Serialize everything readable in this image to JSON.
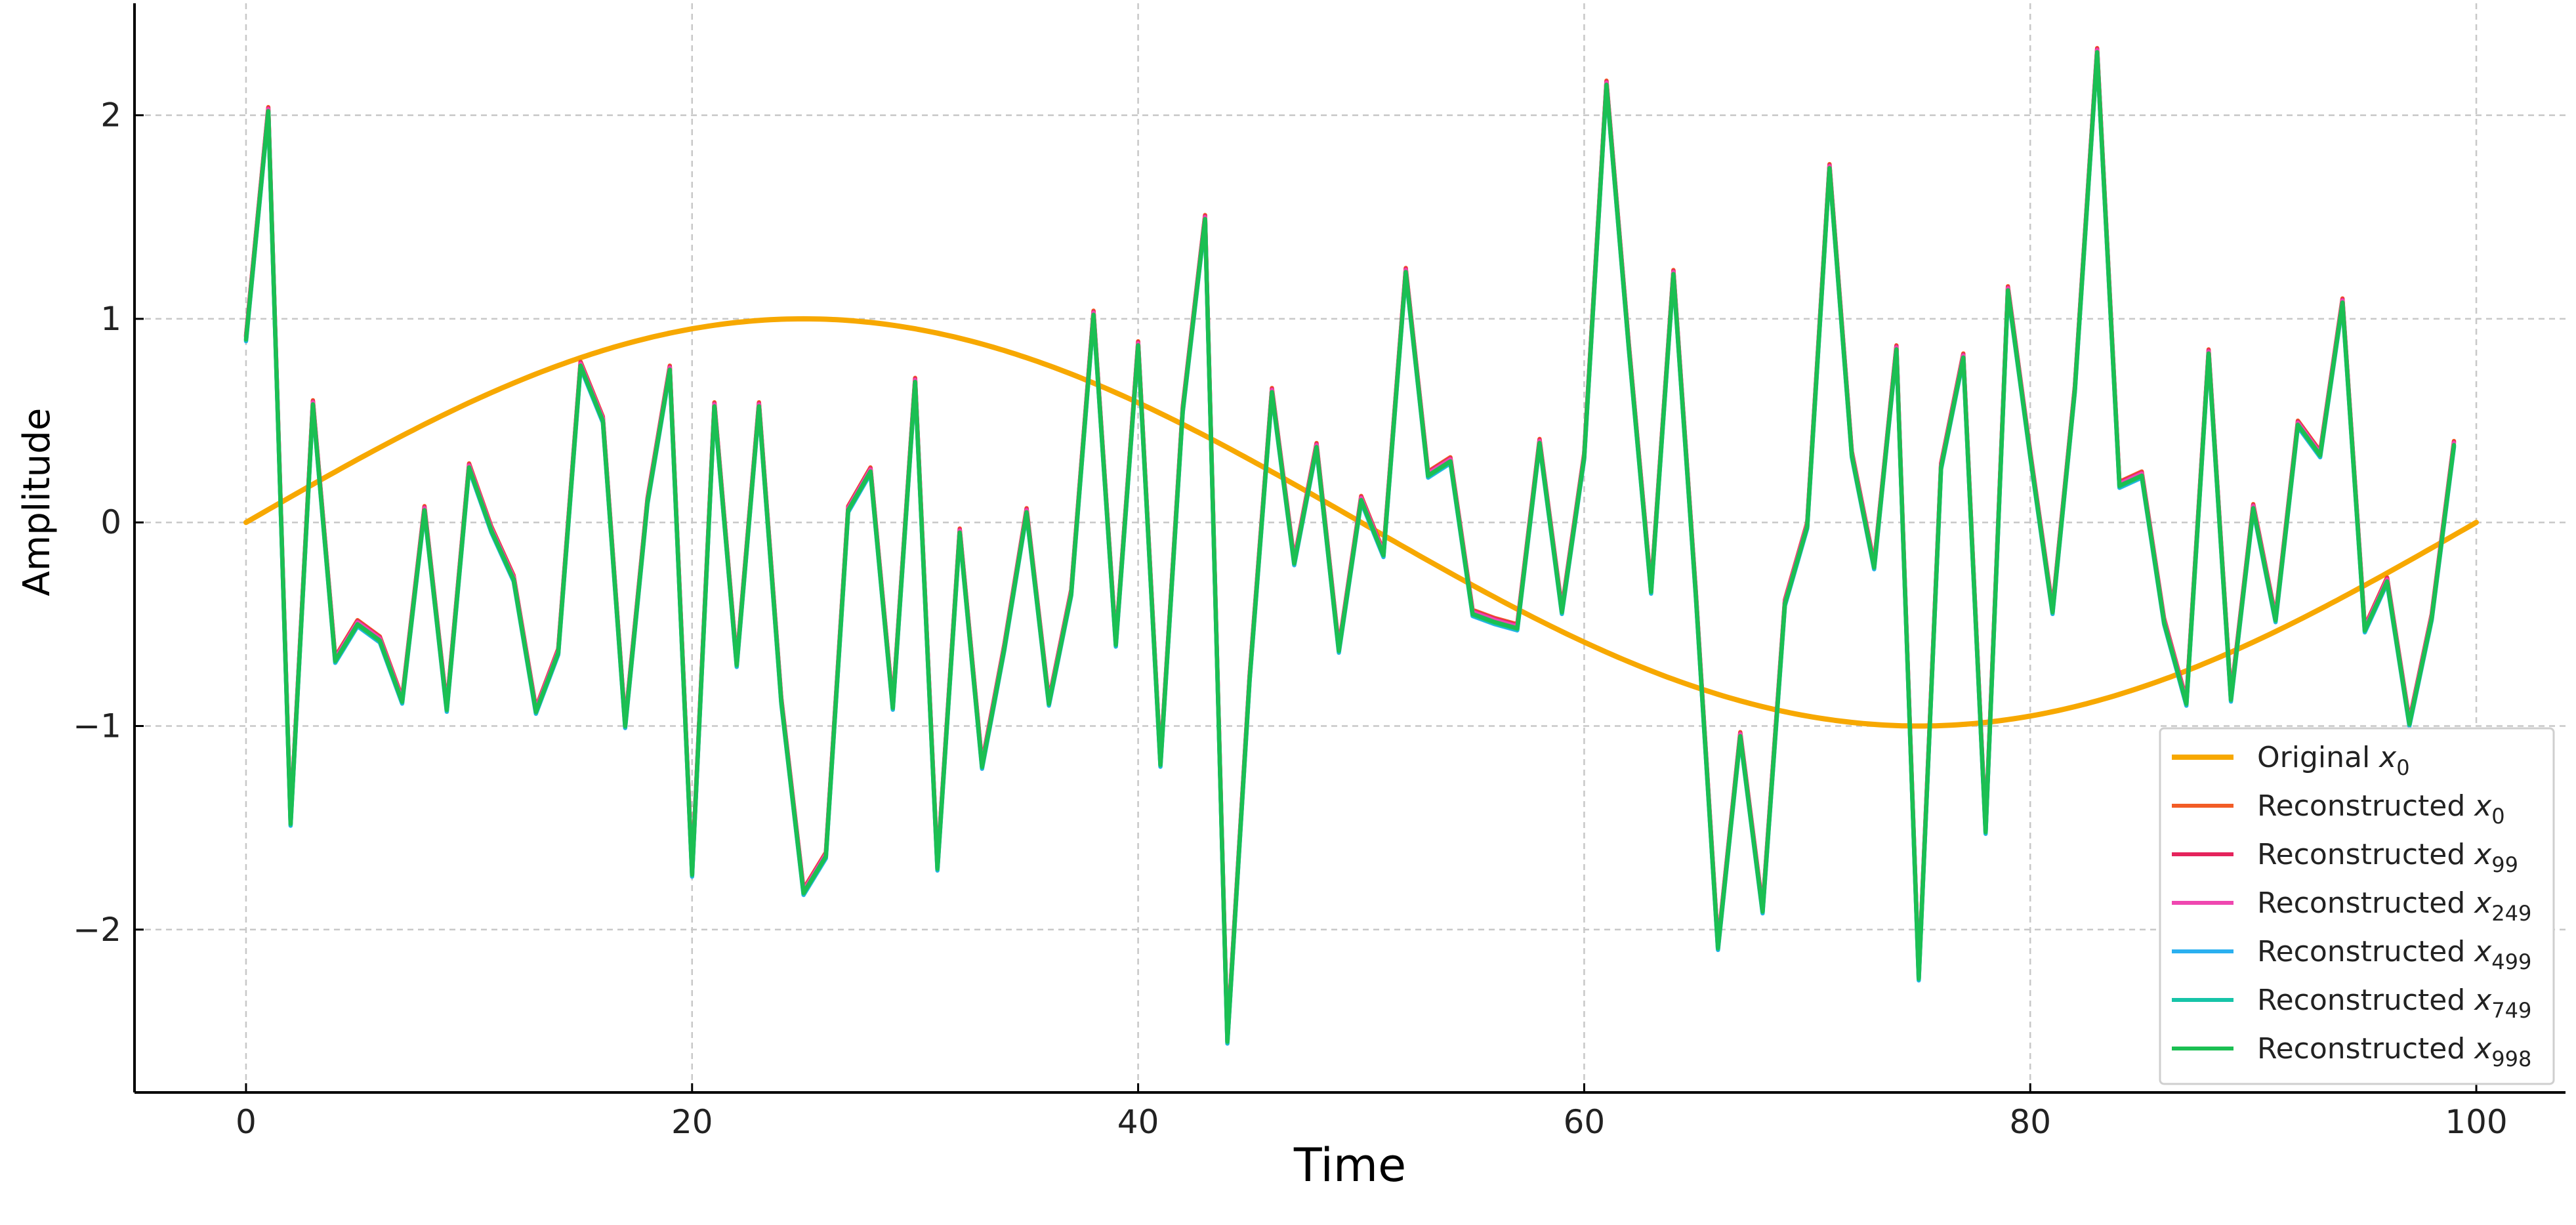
{
  "chart_data": {
    "type": "line",
    "xlabel": "Time",
    "ylabel": "Amplitude",
    "xlim": [
      -5,
      104
    ],
    "ylim": [
      -2.8,
      2.55
    ],
    "xticks": [
      0,
      20,
      40,
      60,
      80,
      100
    ],
    "yticks": [
      -2,
      -1,
      0,
      1,
      2
    ],
    "grid": true,
    "legend_position": "bottom-right",
    "original": {
      "name_prefix": "Original ",
      "name_sub": "0",
      "color": "#f7a800",
      "function": "sin(2*pi*t/100)",
      "x_start": 0,
      "x_end": 100
    },
    "reconstructed": {
      "x": [
        0,
        1,
        2,
        3,
        4,
        5,
        6,
        7,
        8,
        9,
        10,
        11,
        12,
        13,
        14,
        15,
        16,
        17,
        18,
        19,
        20,
        21,
        22,
        23,
        24,
        25,
        26,
        27,
        28,
        29,
        30,
        31,
        32,
        33,
        34,
        35,
        36,
        37,
        38,
        39,
        40,
        41,
        42,
        43,
        44,
        45,
        46,
        47,
        48,
        49,
        50,
        51,
        52,
        53,
        54,
        55,
        56,
        57,
        58,
        59,
        60,
        61,
        62,
        63,
        64,
        65,
        66,
        67,
        68,
        69,
        70,
        71,
        72,
        73,
        74,
        75,
        76,
        77,
        78,
        79,
        80,
        81,
        82,
        83,
        84,
        85,
        86,
        87,
        88,
        89,
        90,
        91,
        92,
        93,
        94,
        95,
        96,
        97,
        98,
        99
      ],
      "y": [
        0.9,
        2.02,
        -1.48,
        0.58,
        -0.68,
        -0.5,
        -0.58,
        -0.88,
        0.06,
        -0.92,
        0.27,
        -0.04,
        -0.28,
        -0.93,
        -0.64,
        0.77,
        0.5,
        -1.0,
        0.1,
        0.75,
        -1.73,
        0.57,
        -0.7,
        0.57,
        -0.88,
        -1.82,
        -1.64,
        0.06,
        0.25,
        -0.91,
        0.69,
        -1.7,
        -0.05,
        -1.2,
        -0.62,
        0.05,
        -0.89,
        -0.35,
        1.02,
        -0.6,
        0.87,
        -1.19,
        0.55,
        1.49,
        -2.55,
        -0.77,
        0.64,
        -0.2,
        0.37,
        -0.63,
        0.11,
        -0.16,
        1.23,
        0.23,
        0.3,
        -0.45,
        -0.49,
        -0.52,
        0.39,
        -0.44,
        0.32,
        2.15,
        0.86,
        -0.34,
        1.22,
        -0.35,
        -2.09,
        -1.05,
        -1.91,
        -0.4,
        -0.02,
        1.74,
        0.33,
        -0.22,
        0.85,
        -2.24,
        0.27,
        0.81,
        -1.52,
        1.14,
        0.33,
        -0.44,
        0.65,
        2.31,
        0.18,
        0.23,
        -0.49,
        -0.89,
        0.83,
        -0.87,
        0.07,
        -0.48,
        0.48,
        0.33,
        1.08,
        -0.53,
        -0.29,
        -0.99,
        -0.47,
        0.38
      ]
    },
    "series": [
      {
        "name_prefix": "Reconstructed ",
        "name_sub": "0",
        "color": "#f25c26",
        "offset": 0.02
      },
      {
        "name_prefix": "Reconstructed ",
        "name_sub": "99",
        "color": "#e5245c",
        "offset": 0.015
      },
      {
        "name_prefix": "Reconstructed ",
        "name_sub": "249",
        "color": "#ef47b0",
        "offset": 0.01
      },
      {
        "name_prefix": "Reconstructed ",
        "name_sub": "499",
        "color": "#2ab0f0",
        "offset": -0.01
      },
      {
        "name_prefix": "Reconstructed ",
        "name_sub": "749",
        "color": "#16c4a8",
        "offset": -0.005
      },
      {
        "name_prefix": "Reconstructed ",
        "name_sub": "998",
        "color": "#1bbf52",
        "offset": 0
      }
    ]
  }
}
